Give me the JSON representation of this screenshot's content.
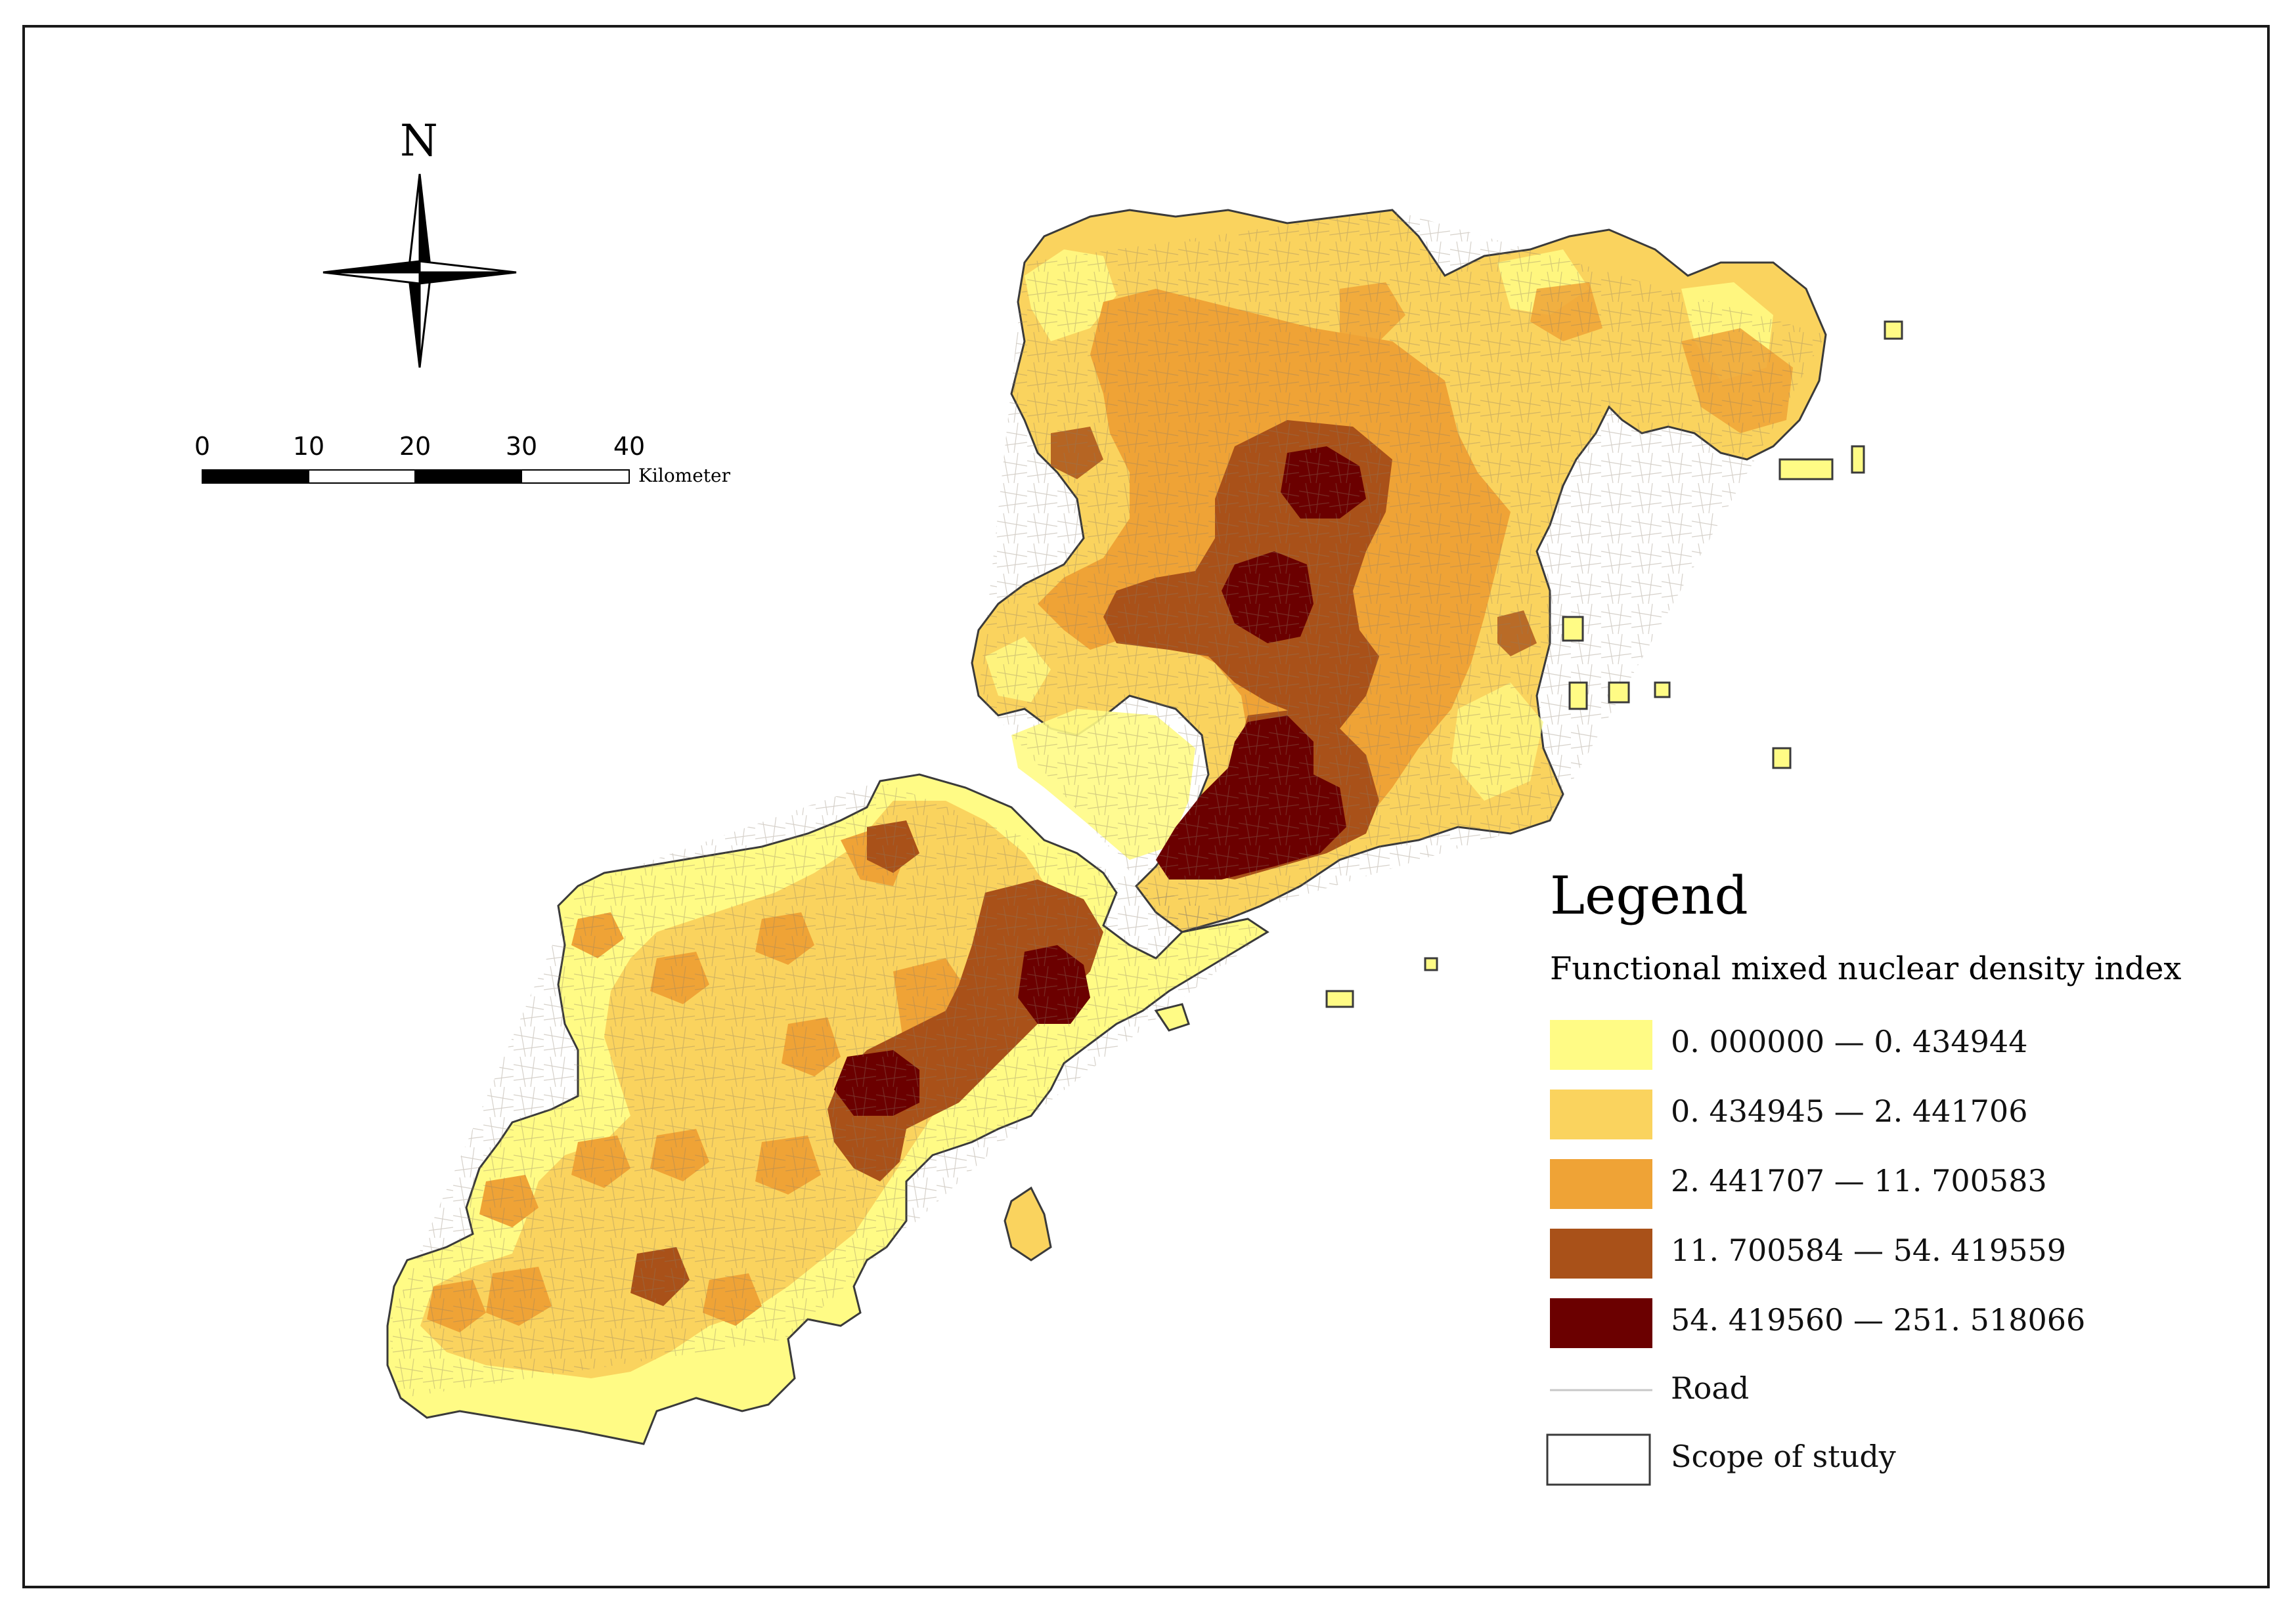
{
  "map": {
    "north_label": "N",
    "scale_bar": {
      "ticks": [
        "0",
        "10",
        "20",
        "30",
        "40"
      ],
      "unit": "Kilometer"
    }
  },
  "legend": {
    "title": "Legend",
    "subtitle": "Functional mixed nuclear density index",
    "classes": [
      {
        "label": "0. 000000 — 0. 434944",
        "color": "#FFFB85"
      },
      {
        "label": "0. 434945 — 2. 441706",
        "color": "#FAD35E"
      },
      {
        "label": "2. 441707 — 11. 700583",
        "color": "#EFA336"
      },
      {
        "label": "11. 700584 — 54. 419559",
        "color": "#A95119"
      },
      {
        "label": "54. 419560 — 251. 518066",
        "color": "#6B0000"
      }
    ],
    "road_label": "Road",
    "scope_label": "Scope of study",
    "road_color": "#C8C8C8",
    "scope_color": "#3A3A3A"
  }
}
